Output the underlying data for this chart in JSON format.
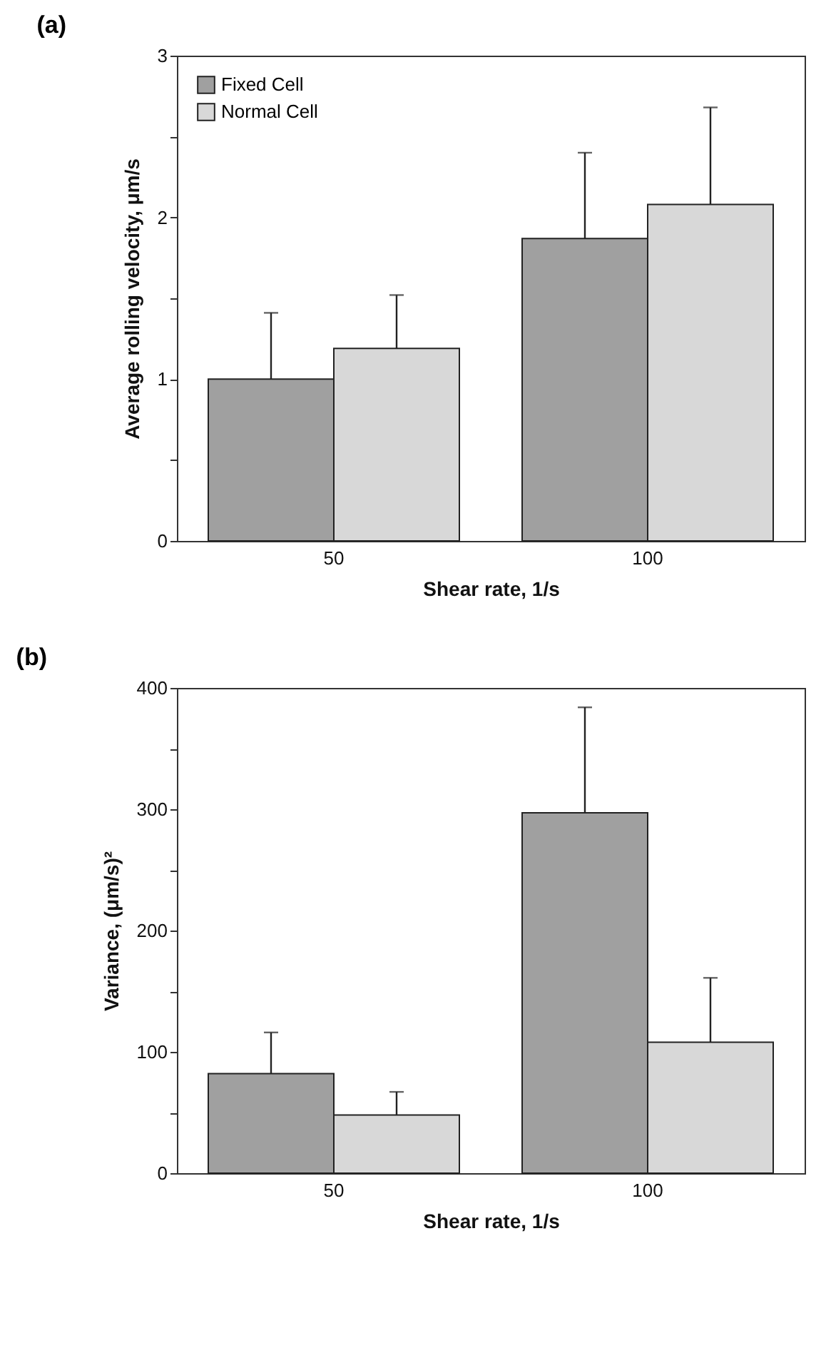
{
  "chart_data": [
    {
      "type": "bar",
      "title": "(a)",
      "xlabel": "Shear rate, 1/s",
      "ylabel": "Average rolling velocity, μm/s",
      "categories": [
        "50",
        "100"
      ],
      "series": [
        {
          "name": "Fixed Cell",
          "color": "#a0a0a0",
          "values": [
            1.0,
            1.87
          ],
          "errors": [
            [
              1.0,
              1.41
            ],
            [
              1.87,
              2.4
            ]
          ]
        },
        {
          "name": "Normal Cell",
          "color": "#d8d8d8",
          "values": [
            1.19,
            2.08
          ],
          "errors": [
            [
              1.19,
              1.52
            ],
            [
              2.08,
              2.68
            ]
          ]
        }
      ],
      "ylim": [
        0,
        3
      ],
      "yticks": [
        0,
        {
          "value": 0.5,
          "label": null
        },
        1,
        {
          "value": 1.5,
          "label": null
        },
        2,
        {
          "value": 2.5,
          "label": null
        },
        3
      ],
      "legend": "top left",
      "grid": false
    },
    {
      "type": "bar",
      "title": "(b)",
      "xlabel": "Shear rate, 1/s",
      "ylabel": "Variance, (μm/s)²",
      "categories": [
        "50",
        "100"
      ],
      "series": [
        {
          "name": "Fixed Cell",
          "color": "#a0a0a0",
          "values": [
            82,
            297
          ],
          "errors": [
            [
              82,
              116
            ],
            [
              297,
              384
            ]
          ]
        },
        {
          "name": "Normal Cell",
          "color": "#d8d8d8",
          "values": [
            48,
            108
          ],
          "errors": [
            [
              48,
              67
            ],
            [
              108,
              161
            ]
          ]
        }
      ],
      "ylim": [
        0,
        400
      ],
      "yticks": [
        0,
        {
          "value": 50,
          "label": null
        },
        100,
        {
          "value": 150,
          "label": null
        },
        200,
        {
          "value": 250,
          "label": null
        },
        300,
        {
          "value": 350,
          "label": null
        },
        400
      ],
      "legend": "top left",
      "grid": false
    }
  ]
}
